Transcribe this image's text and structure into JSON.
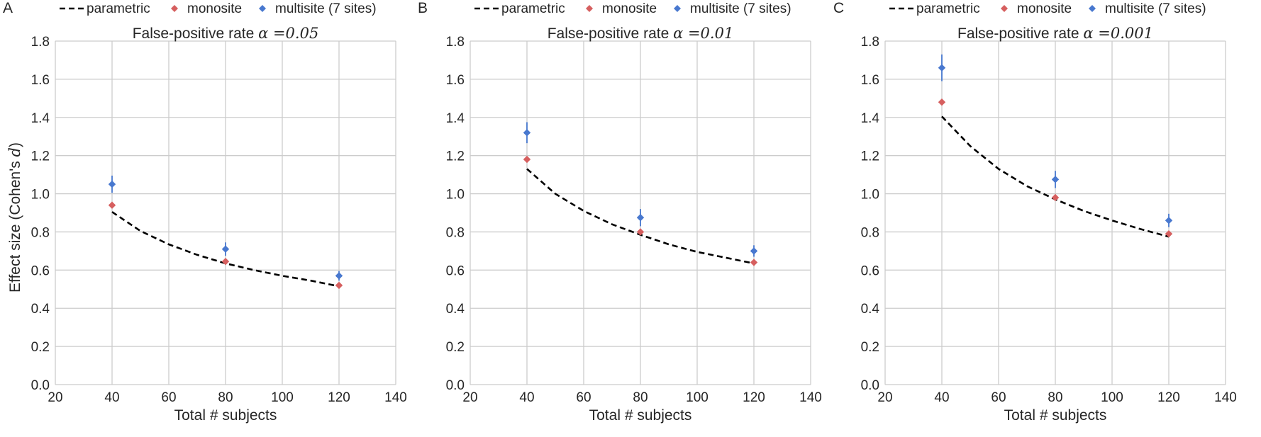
{
  "figure": {
    "ylabel": "Effect size (Cohen's d)",
    "ylabel_prefix": "Effect size (Cohen's ",
    "ylabel_var": "d",
    "ylabel_suffix": ")",
    "legend": {
      "parametric": "parametric",
      "monosite": "monosite",
      "multisite": "multisite (7 sites)"
    },
    "colors": {
      "parametric": "#000000",
      "monosite": "#d65f5f",
      "multisite": "#4878cf",
      "grid": "#cccccc",
      "background": "#ffffff"
    }
  },
  "chart_data": [
    {
      "type": "scatter",
      "panel_label": "A",
      "title": "False-positive rate α =0.05",
      "title_prefix": "False-positive rate ",
      "title_math": "α =0.05",
      "xlabel": "Total # subjects",
      "ylabel": "Effect size (Cohen's d)",
      "xlim": [
        20,
        140
      ],
      "ylim": [
        0.0,
        1.8
      ],
      "xticks": [
        "20",
        "40",
        "60",
        "80",
        "100",
        "120",
        "140"
      ],
      "yticks": [
        "0.0",
        "0.2",
        "0.4",
        "0.6",
        "0.8",
        "1.0",
        "1.2",
        "1.4",
        "1.6",
        "1.8"
      ],
      "parametric_curve": {
        "x": [
          40,
          50,
          60,
          70,
          80,
          90,
          100,
          110,
          120
        ],
        "y": [
          0.905,
          0.805,
          0.735,
          0.68,
          0.635,
          0.6,
          0.57,
          0.545,
          0.515
        ]
      },
      "series": [
        {
          "name": "monosite",
          "x": [
            40,
            80,
            120
          ],
          "y": [
            0.94,
            0.645,
            0.52
          ],
          "err": [
            0.0,
            0.01,
            0.01
          ]
        },
        {
          "name": "multisite (7 sites)",
          "x": [
            40,
            80,
            120
          ],
          "y": [
            1.05,
            0.71,
            0.57
          ],
          "err": [
            0.045,
            0.035,
            0.025
          ]
        }
      ]
    },
    {
      "type": "scatter",
      "panel_label": "B",
      "title": "False-positive rate α =0.01",
      "title_prefix": "False-positive rate ",
      "title_math": "α =0.01",
      "xlabel": "Total # subjects",
      "ylabel": "",
      "xlim": [
        20,
        140
      ],
      "ylim": [
        0.0,
        1.8
      ],
      "xticks": [
        "20",
        "40",
        "60",
        "80",
        "100",
        "120",
        "140"
      ],
      "yticks": [
        "0.0",
        "0.2",
        "0.4",
        "0.6",
        "0.8",
        "1.0",
        "1.2",
        "1.4",
        "1.6",
        "1.8"
      ],
      "parametric_curve": {
        "x": [
          40,
          50,
          60,
          70,
          80,
          90,
          100,
          110,
          120
        ],
        "y": [
          1.13,
          1.0,
          0.91,
          0.84,
          0.785,
          0.735,
          0.695,
          0.665,
          0.635
        ]
      },
      "series": [
        {
          "name": "monosite",
          "x": [
            40,
            80,
            120
          ],
          "y": [
            1.18,
            0.8,
            0.64
          ],
          "err": [
            0.0,
            0.01,
            0.01
          ]
        },
        {
          "name": "multisite (7 sites)",
          "x": [
            40,
            80,
            120
          ],
          "y": [
            1.32,
            0.875,
            0.7
          ],
          "err": [
            0.055,
            0.045,
            0.03
          ]
        }
      ]
    },
    {
      "type": "scatter",
      "panel_label": "C",
      "title": "False-positive rate α =0.001",
      "title_prefix": "False-positive rate ",
      "title_math": "α =0.001",
      "xlabel": "Total # subjects",
      "ylabel": "",
      "xlim": [
        20,
        140
      ],
      "ylim": [
        0.0,
        1.8
      ],
      "xticks": [
        "20",
        "40",
        "60",
        "80",
        "100",
        "120",
        "140"
      ],
      "yticks": [
        "0.0",
        "0.2",
        "0.4",
        "0.6",
        "0.8",
        "1.0",
        "1.2",
        "1.4",
        "1.6",
        "1.8"
      ],
      "parametric_curve": {
        "x": [
          40,
          50,
          60,
          70,
          80,
          90,
          100,
          110,
          120
        ],
        "y": [
          1.405,
          1.25,
          1.13,
          1.04,
          0.97,
          0.91,
          0.86,
          0.815,
          0.775
        ]
      },
      "series": [
        {
          "name": "monosite",
          "x": [
            40,
            80,
            120
          ],
          "y": [
            1.48,
            0.98,
            0.79
          ],
          "err": [
            0.0,
            0.01,
            0.01
          ]
        },
        {
          "name": "multisite (7 sites)",
          "x": [
            40,
            80,
            120
          ],
          "y": [
            1.66,
            1.075,
            0.86
          ],
          "err": [
            0.07,
            0.045,
            0.035
          ]
        }
      ]
    }
  ]
}
